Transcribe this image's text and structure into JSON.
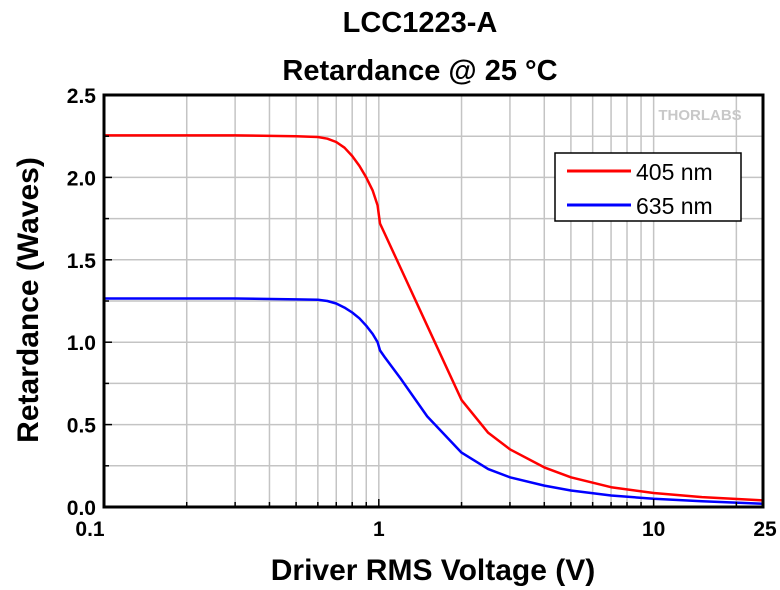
{
  "chart_data": {
    "type": "line",
    "title": "LCC1223-A",
    "subtitle": "Retardance @ 25 °C",
    "xlabel": "Driver RMS Voltage (V)",
    "ylabel": "Retardance (Waves)",
    "xscale": "log",
    "xlim": [
      0.1,
      25
    ],
    "ylim": [
      0,
      2.5
    ],
    "xticks": [
      {
        "v": 0.1,
        "label": "0.1"
      },
      {
        "v": 1,
        "label": "1"
      },
      {
        "v": 10,
        "label": "10"
      },
      {
        "v": 25,
        "label": "25"
      }
    ],
    "yticks": [
      {
        "v": 0,
        "label": "0.0"
      },
      {
        "v": 0.5,
        "label": "0.5"
      },
      {
        "v": 1,
        "label": "1.0"
      },
      {
        "v": 1.5,
        "label": "1.5"
      },
      {
        "v": 2,
        "label": "2.0"
      },
      {
        "v": 2.5,
        "label": "2.5"
      }
    ],
    "grid": true,
    "legend_position": "top-right",
    "watermark": "THORLABS",
    "series": [
      {
        "name": "405 nm",
        "color": "#ff0000",
        "x": [
          0.1,
          0.3,
          0.5,
          0.6,
          0.65,
          0.7,
          0.75,
          0.8,
          0.85,
          0.9,
          0.95,
          0.99,
          1.01,
          1.05,
          1.2,
          1.5,
          2,
          2.5,
          3,
          4,
          5,
          7,
          10,
          15,
          25
        ],
        "y": [
          2.255,
          2.255,
          2.25,
          2.245,
          2.235,
          2.215,
          2.18,
          2.13,
          2.07,
          2.0,
          1.92,
          1.83,
          1.72,
          1.66,
          1.45,
          1.1,
          0.65,
          0.45,
          0.35,
          0.24,
          0.18,
          0.12,
          0.085,
          0.06,
          0.04
        ]
      },
      {
        "name": "635 nm",
        "color": "#0000ff",
        "x": [
          0.1,
          0.3,
          0.5,
          0.6,
          0.65,
          0.7,
          0.75,
          0.8,
          0.85,
          0.9,
          0.95,
          0.99,
          1.01,
          1.05,
          1.2,
          1.5,
          2,
          2.5,
          3,
          4,
          5,
          7,
          10,
          15,
          25
        ],
        "y": [
          1.265,
          1.265,
          1.26,
          1.258,
          1.25,
          1.235,
          1.21,
          1.18,
          1.145,
          1.1,
          1.05,
          1.0,
          0.95,
          0.91,
          0.78,
          0.55,
          0.33,
          0.23,
          0.18,
          0.13,
          0.1,
          0.07,
          0.05,
          0.035,
          0.02
        ]
      }
    ]
  }
}
